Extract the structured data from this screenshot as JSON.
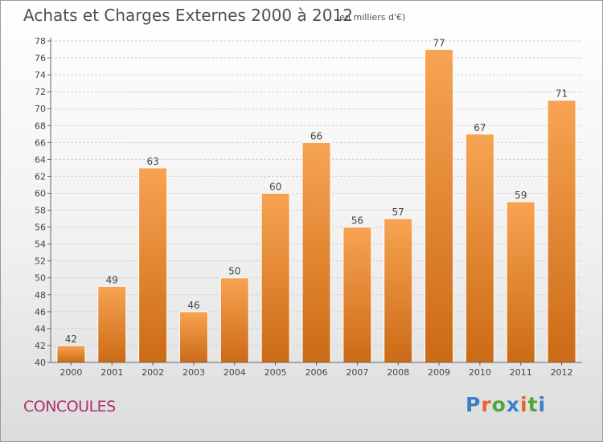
{
  "header": {
    "title": "Achats et Charges Externes 2000 à 2012",
    "subtitle": "(en milliers d'€)"
  },
  "footer": {
    "commune": "CONCOULES",
    "logo_text": "Proxiti",
    "logo_colors": [
      "#3a7fc8",
      "#e6632a",
      "#4fa63a",
      "#3a7fc8",
      "#e6632a",
      "#4fa63a",
      "#3a7fc8"
    ]
  },
  "colors": {
    "bar_top": "#f7a452",
    "bar_bottom": "#cc6a16",
    "bar_edge": "#ffffff",
    "grid": "#cfcfcf",
    "axis": "#666666"
  },
  "chart_data": {
    "type": "bar",
    "categories": [
      "2000",
      "2001",
      "2002",
      "2003",
      "2004",
      "2005",
      "2006",
      "2007",
      "2008",
      "2009",
      "2010",
      "2011",
      "2012"
    ],
    "values": [
      42,
      49,
      63,
      46,
      50,
      60,
      66,
      56,
      57,
      77,
      67,
      59,
      71
    ],
    "title": "Achats et Charges Externes 2000 à 2012",
    "ylim": [
      40,
      78
    ],
    "ytick_step": 2,
    "grid": true,
    "legend": "none"
  }
}
